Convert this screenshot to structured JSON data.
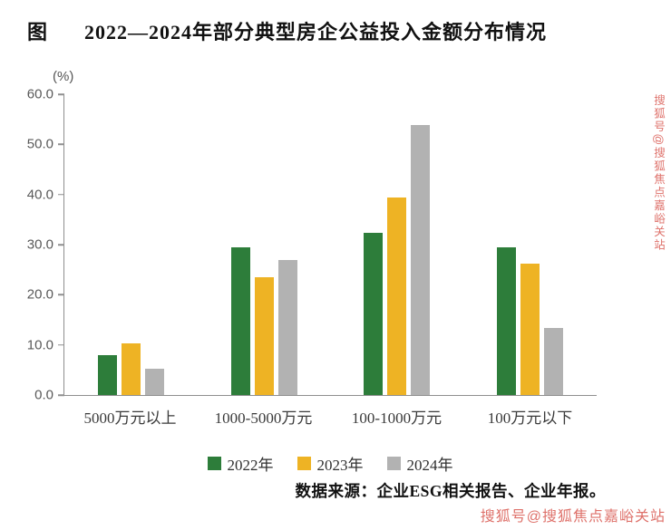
{
  "title": {
    "figure_label": "图",
    "text": "2022—2024年部分典型房企公益投入金额分布情况"
  },
  "chart_data": {
    "type": "bar",
    "title": "2022—2024年部分典型房企公益投入金额分布情况",
    "unit_label": "(%)",
    "categories": [
      "5000万元以上",
      "1000-5000万元",
      "100-1000万元",
      "100万元以下"
    ],
    "series": [
      {
        "name": "2022年",
        "color": "#2d7d3a",
        "values": [
          7.9,
          29.5,
          32.4,
          29.5
        ]
      },
      {
        "name": "2023年",
        "color": "#eeb324",
        "values": [
          10.3,
          23.5,
          39.4,
          26.2
        ]
      },
      {
        "name": "2024年",
        "color": "#b2b2b2",
        "values": [
          5.3,
          26.9,
          53.8,
          13.3
        ]
      }
    ],
    "ylim": [
      0,
      60
    ],
    "ytick_step": 10,
    "ytick_labels": [
      "0.0",
      "10.0",
      "20.0",
      "30.0",
      "40.0",
      "50.0",
      "60.0"
    ],
    "grid": false,
    "legend_position": "bottom"
  },
  "source": "数据来源：企业ESG相关报告、企业年报。",
  "watermark": "搜狐号@搜狐焦点嘉峪关站"
}
